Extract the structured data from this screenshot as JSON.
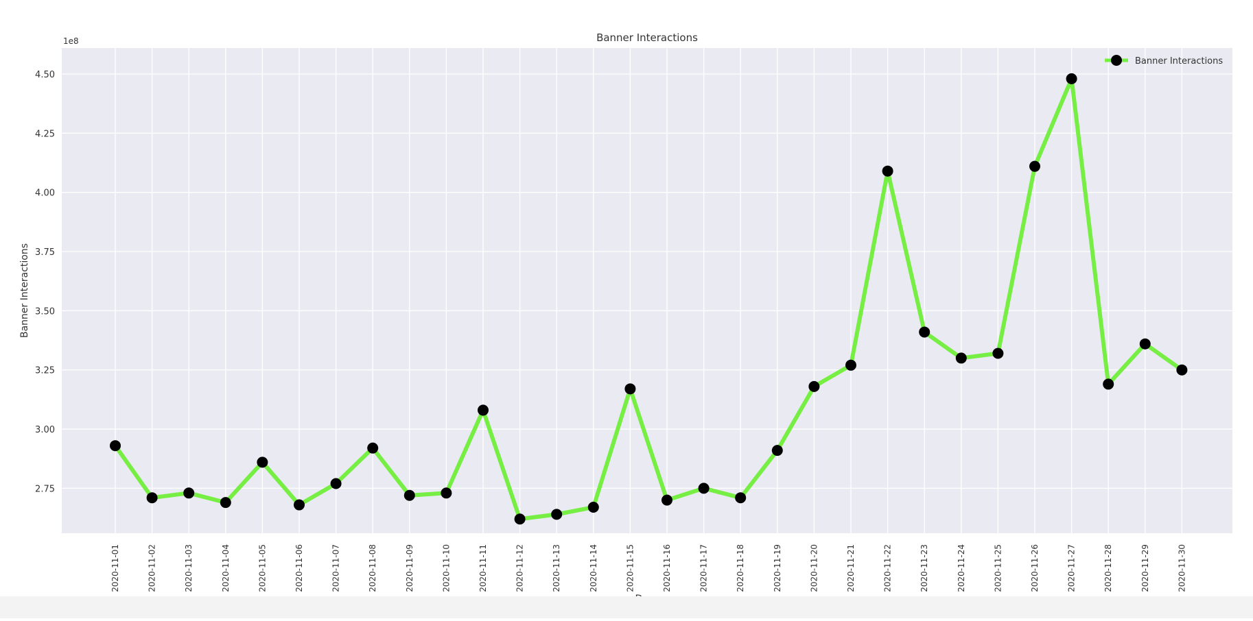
{
  "chart_data": {
    "type": "line",
    "title": "Banner Interactions",
    "xlabel": "Days",
    "ylabel": "Banner Interactions",
    "y_offset_label": "1e8",
    "categories": [
      "2020-11-01",
      "2020-11-02",
      "2020-11-03",
      "2020-11-04",
      "2020-11-05",
      "2020-11-06",
      "2020-11-07",
      "2020-11-08",
      "2020-11-09",
      "2020-11-10",
      "2020-11-11",
      "2020-11-12",
      "2020-11-13",
      "2020-11-14",
      "2020-11-15",
      "2020-11-16",
      "2020-11-17",
      "2020-11-18",
      "2020-11-19",
      "2020-11-20",
      "2020-11-21",
      "2020-11-22",
      "2020-11-23",
      "2020-11-24",
      "2020-11-25",
      "2020-11-26",
      "2020-11-27",
      "2020-11-28",
      "2020-11-29",
      "2020-11-30"
    ],
    "series": [
      {
        "name": "Banner Interactions",
        "color": "#77ee44",
        "marker_color": "#000000",
        "values": [
          2.93,
          2.71,
          2.73,
          2.69,
          2.86,
          2.68,
          2.77,
          2.92,
          2.72,
          2.73,
          3.08,
          2.62,
          2.64,
          2.67,
          3.17,
          2.7,
          2.75,
          2.71,
          2.91,
          3.18,
          3.27,
          4.09,
          3.41,
          3.3,
          3.32,
          4.11,
          4.48,
          3.19,
          3.36,
          3.25
        ]
      }
    ],
    "yticks": [
      "2.75",
      "3.00",
      "3.25",
      "3.50",
      "3.75",
      "4.00",
      "4.25",
      "4.50"
    ],
    "ylim": [
      2.56,
      4.61
    ],
    "grid": true,
    "legend": "top-right",
    "style": {
      "background": "#eaeaf2",
      "grid_color": "#ffffff"
    }
  }
}
